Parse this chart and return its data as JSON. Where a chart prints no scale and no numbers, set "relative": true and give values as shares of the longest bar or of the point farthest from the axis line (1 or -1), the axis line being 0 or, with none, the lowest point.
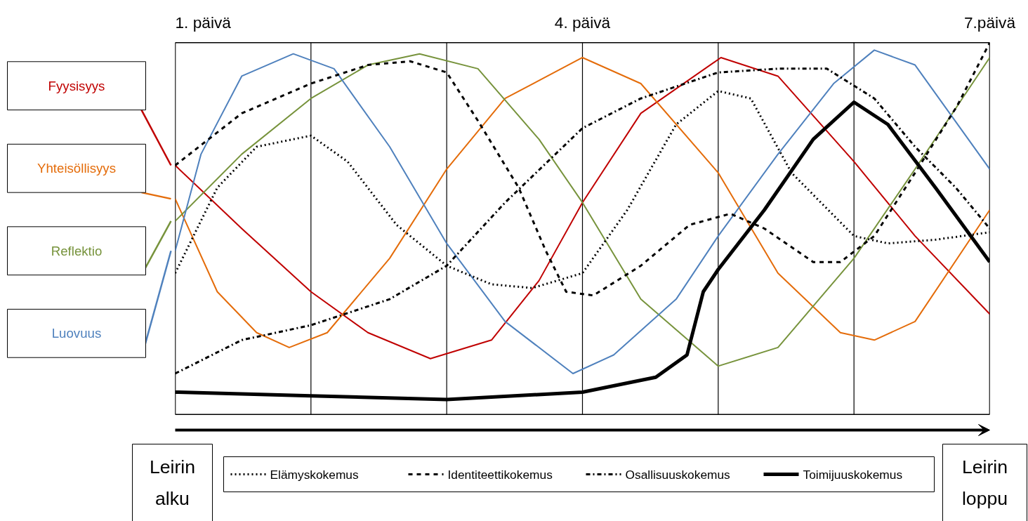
{
  "chart_data": {
    "type": "line",
    "relative": true,
    "grid": "x",
    "legend": "bottom",
    "xlim": [
      1,
      7
    ],
    "xticks": [
      {
        "value": 1,
        "label": "1. päivä"
      },
      {
        "value": 2,
        "label": null
      },
      {
        "value": 3,
        "label": null
      },
      {
        "value": 4,
        "label": "4. päivä"
      },
      {
        "value": 5,
        "label": null
      },
      {
        "value": 6,
        "label": null
      },
      {
        "value": 7,
        "label": "7.päivä"
      }
    ],
    "series": [
      {
        "name": "Fyysisyys",
        "color": "#c00000",
        "x": [
          1,
          1.49,
          2,
          2.42,
          2.88,
          3.33,
          3.68,
          4,
          4.43,
          5.02,
          5.44,
          6,
          6.45,
          7
        ],
        "values": [
          0.67,
          0.5,
          0.33,
          0.22,
          0.15,
          0.2,
          0.36,
          0.57,
          0.81,
          0.96,
          0.91,
          0.68,
          0.48,
          0.27
        ]
      },
      {
        "name": "Yhteisöllisyys",
        "color": "#e46c0a",
        "x": [
          1,
          1.31,
          1.6,
          1.84,
          2.12,
          2.58,
          3,
          3.43,
          4,
          4.43,
          5,
          5.44,
          5.9,
          6.15,
          6.45,
          7
        ],
        "values": [
          0.58,
          0.33,
          0.22,
          0.18,
          0.22,
          0.42,
          0.66,
          0.85,
          0.96,
          0.89,
          0.65,
          0.38,
          0.22,
          0.2,
          0.25,
          0.55
        ]
      },
      {
        "name": "Reflektio",
        "color": "#77933c",
        "x": [
          1,
          1.49,
          2,
          2.42,
          2.8,
          3.23,
          3.68,
          4,
          4.43,
          5,
          5.44,
          6,
          6.45,
          7
        ],
        "values": [
          0.52,
          0.7,
          0.85,
          0.94,
          0.97,
          0.93,
          0.74,
          0.57,
          0.31,
          0.13,
          0.18,
          0.42,
          0.66,
          0.96
        ]
      },
      {
        "name": "Luovuus",
        "color": "#4f81bd",
        "x": [
          1,
          1.19,
          1.49,
          1.87,
          2.17,
          2.58,
          3,
          3.43,
          3.93,
          4.23,
          4.69,
          5,
          5.44,
          5.85,
          6.15,
          6.45,
          7
        ],
        "values": [
          0.44,
          0.7,
          0.91,
          0.97,
          0.93,
          0.72,
          0.46,
          0.25,
          0.11,
          0.16,
          0.31,
          0.48,
          0.7,
          0.89,
          0.98,
          0.94,
          0.66
        ]
      },
      {
        "name": "Elämyskokemus",
        "color": "#000000",
        "line_style": "dotted",
        "x": [
          1,
          1.31,
          1.6,
          2,
          2.27,
          2.63,
          3,
          3.33,
          3.63,
          4,
          4.33,
          4.69,
          5,
          5.24,
          5.54,
          6,
          6.25,
          6.6,
          7
        ],
        "values": [
          0.38,
          0.61,
          0.72,
          0.75,
          0.68,
          0.51,
          0.4,
          0.35,
          0.34,
          0.38,
          0.55,
          0.78,
          0.87,
          0.85,
          0.65,
          0.48,
          0.46,
          0.47,
          0.49
        ]
      },
      {
        "name": "Identiteettikokemus",
        "color": "#000000",
        "line_style": "dashed",
        "x": [
          1,
          1.49,
          2,
          2.42,
          2.73,
          3,
          3.23,
          3.53,
          3.73,
          3.88,
          4.08,
          4.43,
          4.79,
          5.09,
          5.34,
          5.7,
          5.9,
          6.15,
          6.45,
          6.76,
          7
        ],
        "values": [
          0.67,
          0.81,
          0.89,
          0.94,
          0.95,
          0.92,
          0.79,
          0.61,
          0.44,
          0.33,
          0.32,
          0.4,
          0.51,
          0.54,
          0.5,
          0.41,
          0.41,
          0.48,
          0.65,
          0.83,
          1
        ]
      },
      {
        "name": "Osallisuuskokemus",
        "color": "#000000",
        "line_style": "dashdot",
        "x": [
          1,
          1.49,
          2,
          2.58,
          3,
          3.43,
          4,
          4.43,
          5,
          5.44,
          5.8,
          6.15,
          6.45,
          6.75,
          7
        ],
        "values": [
          0.11,
          0.2,
          0.24,
          0.31,
          0.4,
          0.57,
          0.77,
          0.85,
          0.92,
          0.93,
          0.93,
          0.85,
          0.72,
          0.61,
          0.5
        ]
      },
      {
        "name": "Toimijuuskokemus",
        "color": "#000000",
        "line_style": "solid",
        "x": [
          1,
          2,
          3,
          4,
          4.54,
          4.77,
          4.89,
          5,
          5.34,
          5.7,
          6,
          6.25,
          6.6,
          7
        ],
        "values": [
          0.06,
          0.05,
          0.04,
          0.06,
          0.1,
          0.16,
          0.33,
          0.39,
          0.55,
          0.74,
          0.84,
          0.78,
          0.61,
          0.41
        ]
      }
    ],
    "annotations": [
      "Leirin alku",
      "Leirin loppu"
    ]
  }
}
